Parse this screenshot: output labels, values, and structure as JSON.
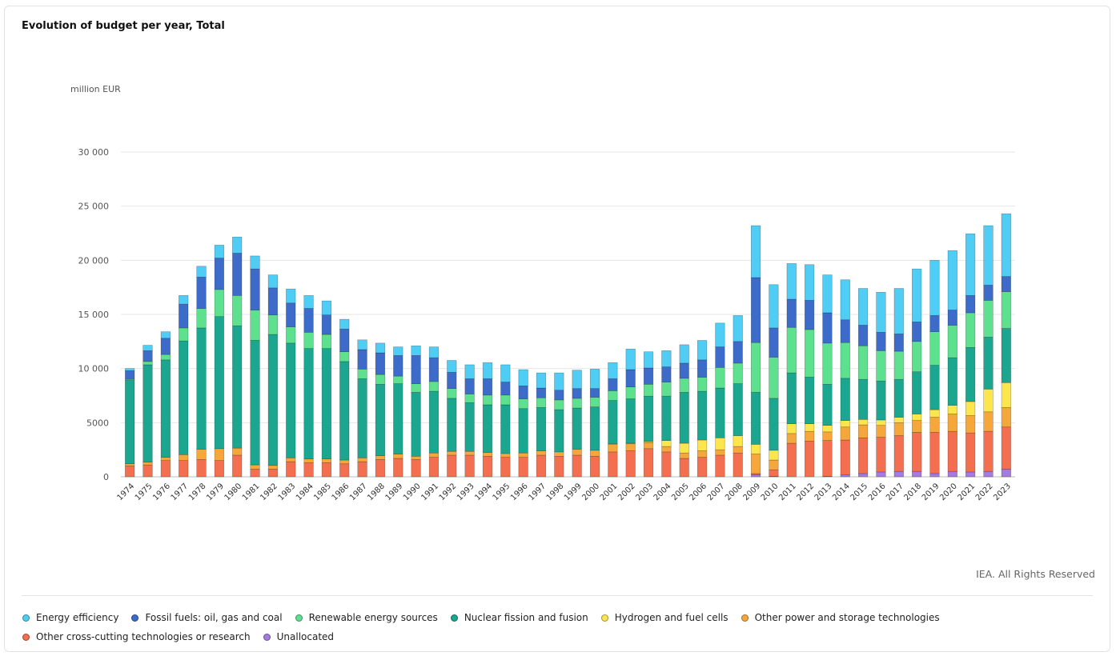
{
  "title": "Evolution of budget per year, Total",
  "source": "IEA. All Rights Reserved",
  "chart_data": {
    "type": "bar",
    "stacked": true,
    "title": "Evolution of budget per year, Total",
    "ylabel": "million EUR",
    "ylim": [
      0,
      30000
    ],
    "yticks": [
      0,
      5000,
      10000,
      15000,
      20000,
      25000,
      30000
    ],
    "ytick_labels": [
      "0",
      "5000",
      "10 000",
      "15 000",
      "20 000",
      "25 000",
      "30 000"
    ],
    "grid": true,
    "legend_position": "bottom",
    "categories": [
      "1974",
      "1975",
      "1976",
      "1977",
      "1978",
      "1979",
      "1980",
      "1981",
      "1982",
      "1983",
      "1984",
      "1985",
      "1986",
      "1987",
      "1988",
      "1989",
      "1990",
      "1991",
      "1992",
      "1993",
      "1994",
      "1995",
      "1996",
      "1997",
      "1998",
      "1999",
      "2000",
      "2001",
      "2002",
      "2003",
      "2004",
      "2005",
      "2006",
      "2007",
      "2008",
      "2009",
      "2010",
      "2011",
      "2012",
      "2013",
      "2014",
      "2015",
      "2016",
      "2017",
      "2018",
      "2019",
      "2020",
      "2021",
      "2022",
      "2023"
    ],
    "series": [
      {
        "name": "Unallocated",
        "color": "#a57be0",
        "values": [
          0,
          0,
          0,
          0,
          0,
          0,
          0,
          0,
          0,
          0,
          0,
          0,
          0,
          0,
          0,
          0,
          0,
          0,
          0,
          0,
          0,
          0,
          0,
          0,
          0,
          0,
          0,
          0,
          0,
          0,
          0,
          0,
          0,
          0,
          0,
          200,
          50,
          0,
          0,
          50,
          200,
          300,
          450,
          500,
          500,
          300,
          500,
          450,
          500,
          700
        ]
      },
      {
        "name": "Other cross-cutting technologies or research",
        "color": "#f36f50",
        "values": [
          1000,
          1100,
          1500,
          1500,
          1600,
          1500,
          2000,
          700,
          700,
          1400,
          1300,
          1300,
          1200,
          1400,
          1600,
          1700,
          1600,
          1800,
          2000,
          2000,
          1900,
          1800,
          1800,
          2000,
          1900,
          2000,
          1900,
          2300,
          2400,
          2600,
          2300,
          1700,
          1800,
          2000,
          2200,
          100,
          600,
          3100,
          3300,
          3300,
          3200,
          3300,
          3200,
          3300,
          3600,
          3800,
          3700,
          3600,
          3700,
          3900
        ]
      },
      {
        "name": "Other power and storage technologies",
        "color": "#f6a73c",
        "values": [
          200,
          250,
          300,
          550,
          950,
          1100,
          650,
          400,
          350,
          350,
          350,
          350,
          350,
          350,
          350,
          400,
          300,
          400,
          350,
          350,
          350,
          350,
          400,
          400,
          400,
          550,
          550,
          700,
          650,
          550,
          500,
          500,
          600,
          500,
          600,
          1800,
          900,
          900,
          900,
          800,
          1200,
          1200,
          1100,
          1200,
          1100,
          1400,
          1600,
          1600,
          1800,
          1800
        ]
      },
      {
        "name": "Hydrogen and fuel cells",
        "color": "#fde54e",
        "values": [
          0,
          0,
          0,
          0,
          0,
          0,
          0,
          0,
          0,
          0,
          0,
          0,
          0,
          0,
          0,
          0,
          0,
          0,
          0,
          0,
          0,
          0,
          0,
          0,
          0,
          0,
          0,
          50,
          50,
          100,
          550,
          900,
          1000,
          1100,
          1000,
          900,
          900,
          900,
          700,
          600,
          600,
          500,
          500,
          500,
          600,
          700,
          800,
          1300,
          2100,
          2300
        ]
      },
      {
        "name": "Nuclear fission and fusion",
        "color": "#1aa68f",
        "values": [
          7700,
          9000,
          9000,
          10500,
          11200,
          12200,
          11300,
          11500,
          12100,
          10600,
          10200,
          10200,
          9100,
          7300,
          6600,
          6500,
          5900,
          5700,
          4900,
          4500,
          4400,
          4500,
          4100,
          4000,
          3900,
          3800,
          4000,
          4000,
          4100,
          4200,
          4100,
          4700,
          4500,
          4600,
          4800,
          4800,
          4800,
          4700,
          4300,
          3800,
          3900,
          3700,
          3600,
          3500,
          3900,
          4100,
          4400,
          5000,
          4800,
          5000
        ]
      },
      {
        "name": "Renewable energy sources",
        "color": "#5de18e",
        "values": [
          100,
          300,
          500,
          1200,
          1800,
          2500,
          2800,
          2800,
          1800,
          1500,
          1500,
          1300,
          900,
          900,
          900,
          700,
          800,
          900,
          900,
          800,
          900,
          900,
          900,
          900,
          900,
          900,
          900,
          900,
          1100,
          1100,
          1300,
          1300,
          1300,
          1900,
          1900,
          4600,
          3800,
          4200,
          4400,
          3800,
          3300,
          3100,
          2800,
          2600,
          2800,
          3100,
          3000,
          3200,
          3400,
          3400
        ]
      },
      {
        "name": "Fossil fuels: oil, gas and coal",
        "color": "#3d6bc9",
        "values": [
          800,
          1000,
          1500,
          2200,
          2900,
          2900,
          3900,
          3800,
          2500,
          2200,
          2200,
          1800,
          2100,
          1800,
          2000,
          1900,
          2600,
          2200,
          1500,
          1400,
          1500,
          1200,
          1200,
          900,
          900,
          900,
          800,
          1100,
          1600,
          1500,
          1400,
          1400,
          1600,
          1900,
          2000,
          6000,
          2700,
          2600,
          2700,
          2800,
          2100,
          1900,
          1700,
          1600,
          1800,
          1500,
          1400,
          1600,
          1400,
          1400
        ]
      },
      {
        "name": "Energy efficiency",
        "color": "#4fcdf5",
        "values": [
          200,
          500,
          600,
          800,
          1000,
          1200,
          1500,
          1200,
          1200,
          1300,
          1200,
          1300,
          900,
          900,
          900,
          800,
          900,
          1000,
          1100,
          1300,
          1500,
          1600,
          1500,
          1400,
          1600,
          1700,
          1800,
          1500,
          1900,
          1500,
          1500,
          1700,
          1800,
          2200,
          2400,
          4800,
          4000,
          3300,
          3300,
          3500,
          3700,
          3400,
          3700,
          4200,
          4900,
          5100,
          5500,
          5700,
          5500,
          5800
        ]
      }
    ]
  },
  "legend": [
    {
      "label": "Energy efficiency",
      "color": "#4fcdf5"
    },
    {
      "label": "Fossil fuels: oil, gas and coal",
      "color": "#3d6bc9"
    },
    {
      "label": "Renewable energy sources",
      "color": "#5de18e"
    },
    {
      "label": "Nuclear fission and fusion",
      "color": "#1aa68f"
    },
    {
      "label": "Hydrogen and fuel cells",
      "color": "#fde54e"
    },
    {
      "label": "Other power and storage technologies",
      "color": "#f6a73c"
    },
    {
      "label": "Other cross-cutting technologies or research",
      "color": "#f36f50"
    },
    {
      "label": "Unallocated",
      "color": "#a57be0"
    }
  ]
}
